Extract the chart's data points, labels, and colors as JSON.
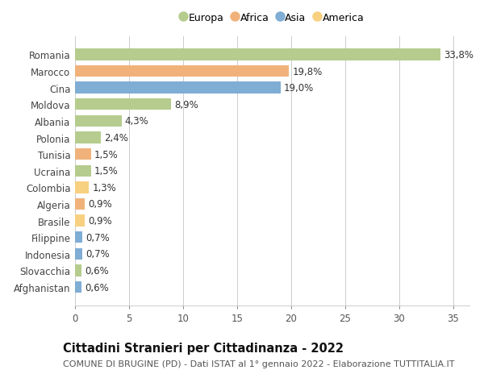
{
  "countries": [
    "Romania",
    "Marocco",
    "Cina",
    "Moldova",
    "Albania",
    "Polonia",
    "Tunisia",
    "Ucraina",
    "Colombia",
    "Algeria",
    "Brasile",
    "Filippine",
    "Indonesia",
    "Slovacchia",
    "Afghanistan"
  ],
  "values": [
    33.8,
    19.8,
    19.0,
    8.9,
    4.3,
    2.4,
    1.5,
    1.5,
    1.3,
    0.9,
    0.9,
    0.7,
    0.7,
    0.6,
    0.6
  ],
  "labels": [
    "33,8%",
    "19,8%",
    "19,0%",
    "8,9%",
    "4,3%",
    "2,4%",
    "1,5%",
    "1,5%",
    "1,3%",
    "0,9%",
    "0,9%",
    "0,7%",
    "0,7%",
    "0,6%",
    "0,6%"
  ],
  "continents": [
    "Europa",
    "Africa",
    "Asia",
    "Europa",
    "Europa",
    "Europa",
    "Africa",
    "Europa",
    "America",
    "Africa",
    "America",
    "Asia",
    "Asia",
    "Europa",
    "Asia"
  ],
  "continent_colors": {
    "Europa": "#b5cc8e",
    "Africa": "#f0b27a",
    "Asia": "#7fadd4",
    "America": "#f7d080"
  },
  "legend_order": [
    "Europa",
    "Africa",
    "Asia",
    "America"
  ],
  "title": "Cittadini Stranieri per Cittadinanza - 2022",
  "subtitle": "COMUNE DI BRUGINE (PD) - Dati ISTAT al 1° gennaio 2022 - Elaborazione TUTTITALIA.IT",
  "xlim": [
    0,
    36.5
  ],
  "xticks": [
    0,
    5,
    10,
    15,
    20,
    25,
    30,
    35
  ],
  "bg_color": "#ffffff",
  "grid_color": "#cccccc",
  "bar_height": 0.7,
  "label_fontsize": 8.5,
  "title_fontsize": 10.5,
  "subtitle_fontsize": 8.0
}
